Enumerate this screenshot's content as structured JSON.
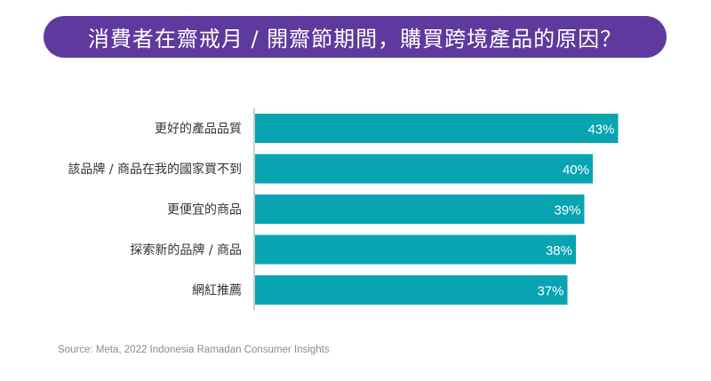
{
  "title": "消費者在齋戒月 / 開齋節期間，購買跨境產品的原因？",
  "source": "Source: Meta, 2022 Indonesia Ramadan Consumer Insights",
  "colors": {
    "banner": "#5f3a9e",
    "bar": "#08a4b2",
    "axis": "#9a9a9a",
    "label": "#333333",
    "value_label": "#ffffff"
  },
  "chart_data": {
    "type": "bar",
    "orientation": "horizontal",
    "title": "消費者在齋戒月 / 開齋節期間，購買跨境產品的原因？",
    "categories": [
      "更好的產品品質",
      "該品牌 / 商品在我的國家買不到",
      "更便宜的商品",
      "探索新的品牌 / 商品",
      "網紅推薦"
    ],
    "values": [
      43,
      40,
      39,
      38,
      37
    ],
    "value_labels": [
      "43%",
      "40%",
      "39%",
      "38%",
      "37%"
    ],
    "unit": "%",
    "xlim": [
      0,
      50
    ],
    "grid": false,
    "legend": "none"
  }
}
